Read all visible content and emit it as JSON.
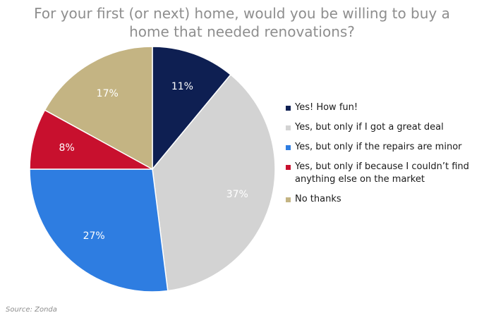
{
  "chart_data": {
    "type": "pie",
    "title_lines": [
      "For your first (or next) home, would you be willing to buy a",
      "home that needed renovations?"
    ],
    "slices": [
      {
        "label": "Yes! How fun!",
        "value": 11,
        "value_label": "11%",
        "color": "#0e1f52"
      },
      {
        "label": "Yes, but only if I got a great deal",
        "value": 37,
        "value_label": "37%",
        "color": "#d3d3d3"
      },
      {
        "label": "Yes, but only if the repairs are minor",
        "value": 27,
        "value_label": "27%",
        "color": "#2e7de1"
      },
      {
        "label": "Yes, but only if because I couldn’t find anything else on the market",
        "value": 8,
        "value_label": "8%",
        "color": "#c8102e"
      },
      {
        "label": "No thanks",
        "value": 17,
        "value_label": "17%",
        "color": "#c4b483"
      }
    ],
    "legend_placement": "right"
  },
  "source": "Source: Zonda"
}
